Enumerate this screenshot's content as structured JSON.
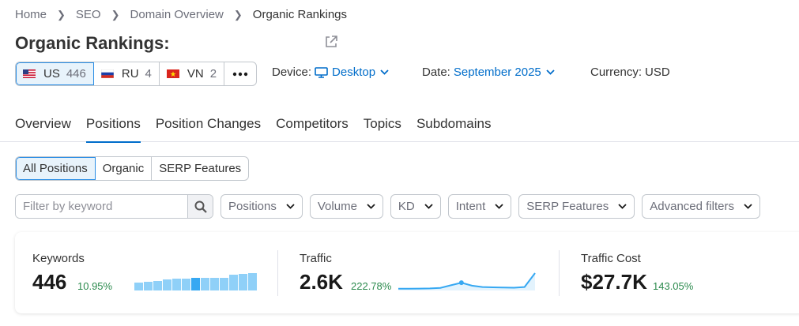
{
  "breadcrumb": [
    "Home",
    "SEO",
    "Domain Overview",
    "Organic Rankings"
  ],
  "page_title": "Organic Rankings:",
  "databases": [
    {
      "code": "US",
      "count": "446",
      "active": true
    },
    {
      "code": "RU",
      "count": "4",
      "active": false
    },
    {
      "code": "VN",
      "count": "2",
      "active": false
    }
  ],
  "device": {
    "label": "Device:",
    "value": "Desktop"
  },
  "date": {
    "label": "Date:",
    "value": "September 2025"
  },
  "currency": {
    "label": "Currency:",
    "value": "USD"
  },
  "tabs": [
    "Overview",
    "Positions",
    "Position Changes",
    "Competitors",
    "Topics",
    "Subdomains"
  ],
  "active_tab": "Positions",
  "segments": [
    "All Positions",
    "Organic",
    "SERP Features"
  ],
  "search": {
    "placeholder": "Filter by keyword"
  },
  "filters": [
    "Positions",
    "Volume",
    "KD",
    "Intent",
    "SERP Features",
    "Advanced filters"
  ],
  "kpis": {
    "keywords": {
      "label": "Keywords",
      "value": "446",
      "delta": "10.95%"
    },
    "traffic": {
      "label": "Traffic",
      "value": "2.6K",
      "delta": "222.78%"
    },
    "traffic_cost": {
      "label": "Traffic Cost",
      "value": "$27.7K",
      "delta": "143.05%"
    }
  },
  "keywords_trend": [
    0.45,
    0.5,
    0.55,
    0.62,
    0.68,
    0.68,
    0.72,
    0.72,
    0.72,
    0.72,
    0.9,
    0.95,
    1.0
  ],
  "keywords_trend_highlight": 6,
  "traffic_trend": [
    0.1,
    0.1,
    0.11,
    0.12,
    0.15,
    0.3,
    0.45,
    0.28,
    0.2,
    0.18,
    0.17,
    0.16,
    0.2,
    1.0
  ],
  "colors": {
    "accent": "#006dca",
    "positive": "#2b8a4d",
    "bar": "#8fd0f8",
    "bar_highlight": "#36a8f2",
    "line": "#36a8f2"
  }
}
